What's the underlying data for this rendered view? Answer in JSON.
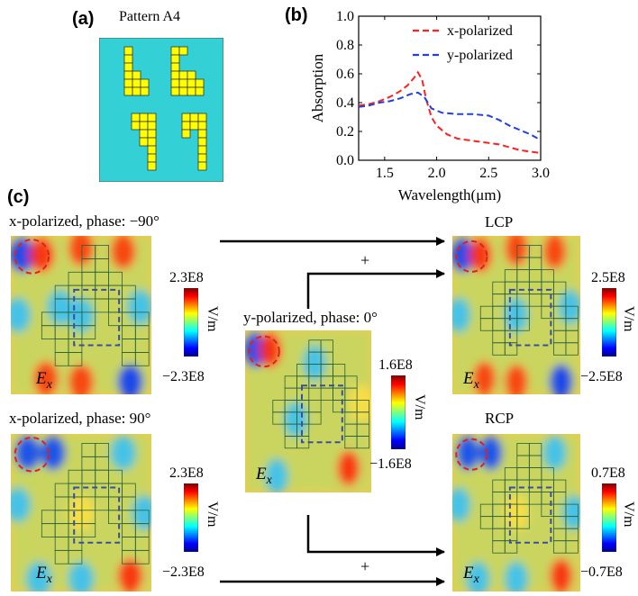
{
  "panels": {
    "a": "(a)",
    "b": "(b)",
    "c": "(c)"
  },
  "pattern": {
    "title": "Pattern A4",
    "colors": {
      "bg": "#33d1d6",
      "cell": "#ffff00"
    }
  },
  "chart_data": {
    "type": "line",
    "xlabel": "Wavelength(μm)",
    "ylabel": "Absorption",
    "xlim": [
      1.25,
      3.0
    ],
    "ylim": [
      0.0,
      1.0
    ],
    "xticks": [
      "1.5",
      "2.0",
      "2.5",
      "3.0"
    ],
    "yticks": [
      "0.0",
      "0.2",
      "0.4",
      "0.6",
      "0.8",
      "1.0"
    ],
    "legend_position": "top-right",
    "series": [
      {
        "name": "x-polarized",
        "color": "#ff2020",
        "dash": "dashed",
        "x": [
          1.25,
          1.35,
          1.45,
          1.55,
          1.65,
          1.72,
          1.78,
          1.82,
          1.86,
          1.9,
          1.95,
          2.0,
          2.1,
          2.2,
          2.3,
          2.4,
          2.5,
          2.6,
          2.7,
          2.8,
          2.9,
          3.0
        ],
        "y": [
          0.38,
          0.39,
          0.41,
          0.44,
          0.48,
          0.52,
          0.57,
          0.61,
          0.56,
          0.42,
          0.3,
          0.24,
          0.18,
          0.15,
          0.14,
          0.13,
          0.12,
          0.11,
          0.09,
          0.07,
          0.06,
          0.05
        ]
      },
      {
        "name": "y-polarized",
        "color": "#2040e0",
        "dash": "dashed",
        "x": [
          1.25,
          1.35,
          1.45,
          1.55,
          1.65,
          1.75,
          1.82,
          1.88,
          1.95,
          2.05,
          2.2,
          2.35,
          2.5,
          2.6,
          2.7,
          2.8,
          2.9,
          3.0
        ],
        "y": [
          0.37,
          0.38,
          0.4,
          0.41,
          0.43,
          0.46,
          0.47,
          0.44,
          0.36,
          0.33,
          0.32,
          0.32,
          0.31,
          0.28,
          0.24,
          0.21,
          0.18,
          0.14
        ]
      }
    ]
  },
  "fields": {
    "tl": {
      "caption": "x-polarized, phase: −90°",
      "cb_max": "2.3E8",
      "cb_min": "−2.3E8"
    },
    "bl": {
      "caption": "x-polarized, phase: 90°",
      "cb_max": "2.3E8",
      "cb_min": "−2.3E8"
    },
    "mid": {
      "caption": "y-polarized, phase: 0°",
      "cb_max": "1.6E8",
      "cb_min": "−1.6E8"
    },
    "tr": {
      "caption": "LCP",
      "cb_max": "2.5E8",
      "cb_min": "−2.5E8"
    },
    "br": {
      "caption": "RCP",
      "cb_max": "0.7E8",
      "cb_min": "−0.7E8"
    }
  },
  "units": "V/m",
  "field_symbol": "E",
  "field_sub": "x",
  "plus": "+"
}
